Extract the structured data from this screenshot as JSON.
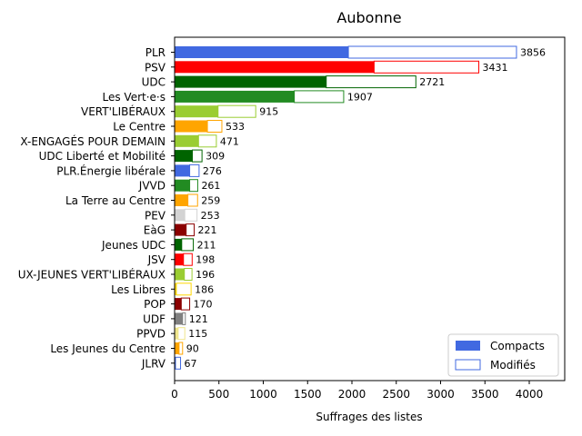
{
  "chart_data": {
    "type": "bar",
    "orientation": "horizontal",
    "stacked": true,
    "title": "Aubonne",
    "xlabel": "Suffrages des listes",
    "ylabel": "",
    "xlim": [
      0,
      4400
    ],
    "xticks": [
      0,
      500,
      1000,
      1500,
      2000,
      2500,
      3000,
      3500,
      4000
    ],
    "grid": false,
    "legend": {
      "placement": "lower-right",
      "entries": [
        {
          "label": "Compacts",
          "style": "filled",
          "color": "#4169e1"
        },
        {
          "label": "Modifiés",
          "style": "outline",
          "color": "#4169e1"
        }
      ]
    },
    "categories": [
      "PLR",
      "PSV",
      "UDC",
      "Les Vert·e·s",
      "VERT'LIBÉRAUX",
      "Le Centre",
      "X-ENGAGÉS POUR DEMAIN",
      "UDC Liberté et Mobilité",
      "PLR.Énergie libérale",
      "JVVD",
      "La Terre au Centre",
      "PEV",
      "EàG",
      "Jeunes UDC",
      "JSV",
      "UX-JEUNES VERT'LIBÉRAUX",
      "Les Libres",
      "POP",
      "UDF",
      "PPVD",
      "Les Jeunes du Centre",
      "JLRV"
    ],
    "series": [
      {
        "name": "Compacts",
        "values": [
          1960,
          2250,
          1710,
          1350,
          490,
          370,
          270,
          200,
          170,
          170,
          150,
          115,
          130,
          80,
          100,
          110,
          20,
          75,
          90,
          40,
          50,
          10
        ]
      },
      {
        "name": "Modifiés",
        "values": [
          1896,
          1181,
          1011,
          557,
          425,
          163,
          201,
          109,
          106,
          91,
          109,
          138,
          91,
          131,
          98,
          86,
          166,
          95,
          31,
          75,
          40,
          57
        ]
      }
    ],
    "totals": [
      3856,
      3431,
      2721,
      1907,
      915,
      533,
      471,
      309,
      276,
      261,
      259,
      253,
      221,
      211,
      198,
      196,
      186,
      170,
      121,
      115,
      90,
      67
    ],
    "colors": [
      "#4169e1",
      "#ff0000",
      "#006400",
      "#228b22",
      "#9acd32",
      "#ffa500",
      "#9acd32",
      "#006400",
      "#4169e1",
      "#228b22",
      "#ffa500",
      "#d3d3d3",
      "#8b0000",
      "#006400",
      "#ff0000",
      "#9acd32",
      "#ffd700",
      "#8b0000",
      "#808080",
      "#f0e68c",
      "#ffa500",
      "#4169e1"
    ]
  }
}
